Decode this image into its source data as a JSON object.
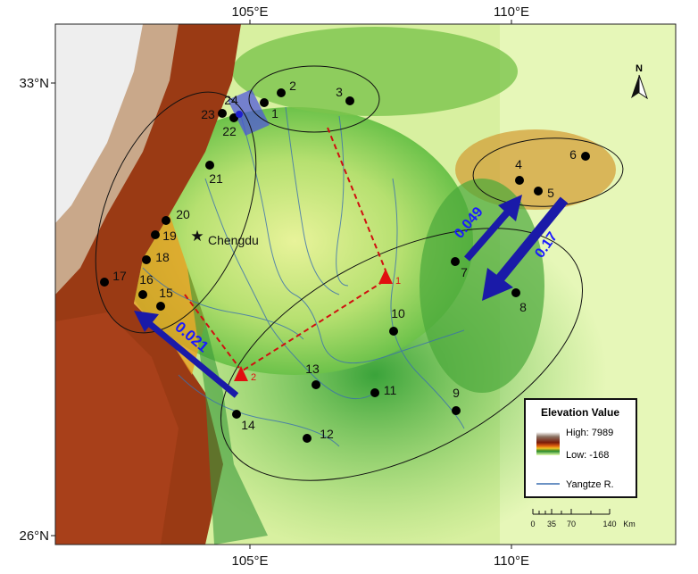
{
  "axes": {
    "lat_labels": [
      "33°N",
      "26°N"
    ],
    "lon_labels": [
      "105°E",
      "110°E"
    ]
  },
  "north_label": "N",
  "city": "Chengdu",
  "sites": [
    {
      "id": "1"
    },
    {
      "id": "2"
    },
    {
      "id": "3"
    },
    {
      "id": "4"
    },
    {
      "id": "5"
    },
    {
      "id": "6"
    },
    {
      "id": "7"
    },
    {
      "id": "8"
    },
    {
      "id": "9"
    },
    {
      "id": "10"
    },
    {
      "id": "11"
    },
    {
      "id": "12"
    },
    {
      "id": "13"
    },
    {
      "id": "14"
    },
    {
      "id": "15"
    },
    {
      "id": "16"
    },
    {
      "id": "17"
    },
    {
      "id": "18"
    },
    {
      "id": "19"
    },
    {
      "id": "20"
    },
    {
      "id": "21"
    },
    {
      "id": "22"
    },
    {
      "id": "23"
    },
    {
      "id": "24"
    }
  ],
  "triangles": [
    "1",
    "2"
  ],
  "arrows": [
    {
      "label": "0.021"
    },
    {
      "label": "0.049"
    },
    {
      "label": "0.17"
    }
  ],
  "legend": {
    "title": "Elevation Value",
    "high": "High: 7989",
    "low": "Low: -168",
    "river": "Yangtze R."
  },
  "scale": {
    "ticks": [
      "0",
      "35",
      "70",
      "140"
    ],
    "unit": "Km"
  },
  "colors": {
    "arrow": "#1a1aa8",
    "triangle": "#e01010",
    "dashed": "#d01010",
    "river": "#3a6fb0"
  }
}
